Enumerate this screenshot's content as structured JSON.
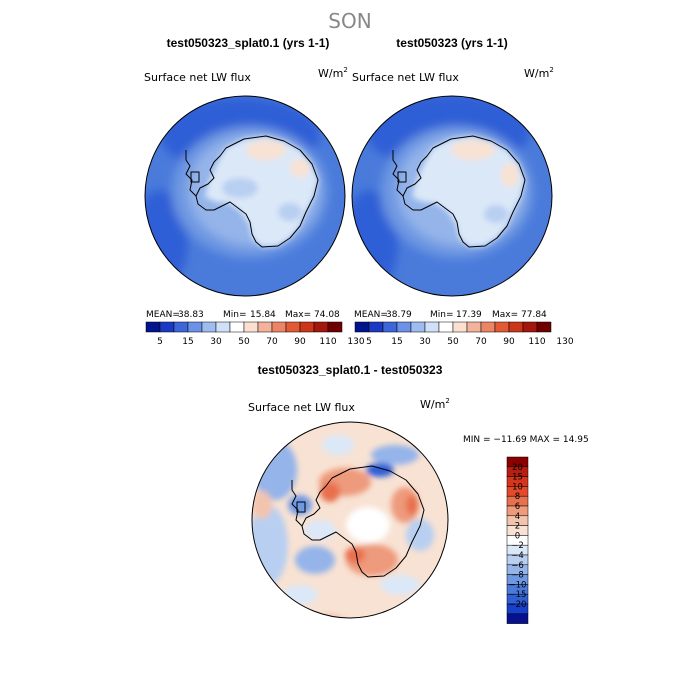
{
  "figure": {
    "season": "SON"
  },
  "colors": {
    "positive_ramp": [
      "#f8e2d3",
      "#f3c4ad",
      "#ee9a7c",
      "#e8704e",
      "#e34a2a",
      "#d6351b",
      "#b81e10",
      "#8b0000"
    ],
    "negative_ramp": [
      "#dbe8f8",
      "#b8cff1",
      "#94b4ea",
      "#6e98e2",
      "#4a7bdb",
      "#2f5fd6",
      "#1640cc",
      "#07108d"
    ]
  },
  "chart_data": [
    {
      "type": "heatmap",
      "projection": "south-polar-stereographic",
      "title": "test050323_splat0.1 (yrs 1-1)",
      "field_label": "Surface net LW flux",
      "units": "W/m",
      "units_exponent": "2",
      "mean_label": "MEAN=",
      "mean": "38.83",
      "min_label": "Min=",
      "min": "15.84",
      "max_label": "Max=",
      "max": "74.08",
      "colorbar": {
        "orientation": "horizontal",
        "tick_labels": [
          "5",
          "15",
          "30",
          "50",
          "70",
          "90",
          "110",
          "130"
        ],
        "colors": [
          "#00148c",
          "#1b3ac4",
          "#3e66d8",
          "#6b92e6",
          "#9dbcf0",
          "#cfe0f7",
          "#ffffff",
          "#fbe0d0",
          "#f3b29a",
          "#ec8566",
          "#e25a35",
          "#cb361b",
          "#a3170c",
          "#6e0000"
        ]
      }
    },
    {
      "type": "heatmap",
      "projection": "south-polar-stereographic",
      "title": "test050323 (yrs 1-1)",
      "field_label": "Surface net LW flux",
      "units": "W/m",
      "units_exponent": "2",
      "mean_label": "MEAN=",
      "mean": "38.79",
      "min_label": "Min=",
      "min": "17.39",
      "max_label": "Max=",
      "max": "77.84",
      "colorbar": {
        "orientation": "horizontal",
        "tick_labels": [
          "5",
          "15",
          "30",
          "50",
          "70",
          "90",
          "110",
          "130"
        ],
        "colors": [
          "#00148c",
          "#1b3ac4",
          "#3e66d8",
          "#6b92e6",
          "#9dbcf0",
          "#cfe0f7",
          "#ffffff",
          "#fbe0d0",
          "#f3b29a",
          "#ec8566",
          "#e25a35",
          "#cb361b",
          "#a3170c",
          "#6e0000"
        ]
      }
    },
    {
      "type": "heatmap",
      "projection": "south-polar-stereographic",
      "title": "test050323_splat0.1 - test050323",
      "field_label": "Surface net LW flux",
      "units": "W/m",
      "units_exponent": "2",
      "minmax_text": "MIN = −11.69 MAX =  14.95",
      "colorbar": {
        "orientation": "vertical",
        "tick_labels": [
          "20",
          "15",
          "10",
          "8",
          "6",
          "4",
          "2",
          "0",
          "−2",
          "−4",
          "−6",
          "−8",
          "−10",
          "−15",
          "−20"
        ],
        "colors": [
          "#8b0000",
          "#b81e10",
          "#d6351b",
          "#e34a2a",
          "#e8704e",
          "#ee9a7c",
          "#f3c4ad",
          "#f8e2d3",
          "#ffffff",
          "#dbe8f8",
          "#b8cff1",
          "#94b4ea",
          "#6e98e2",
          "#4a7bdb",
          "#2f5fd6",
          "#1640cc",
          "#07108d"
        ]
      }
    }
  ]
}
